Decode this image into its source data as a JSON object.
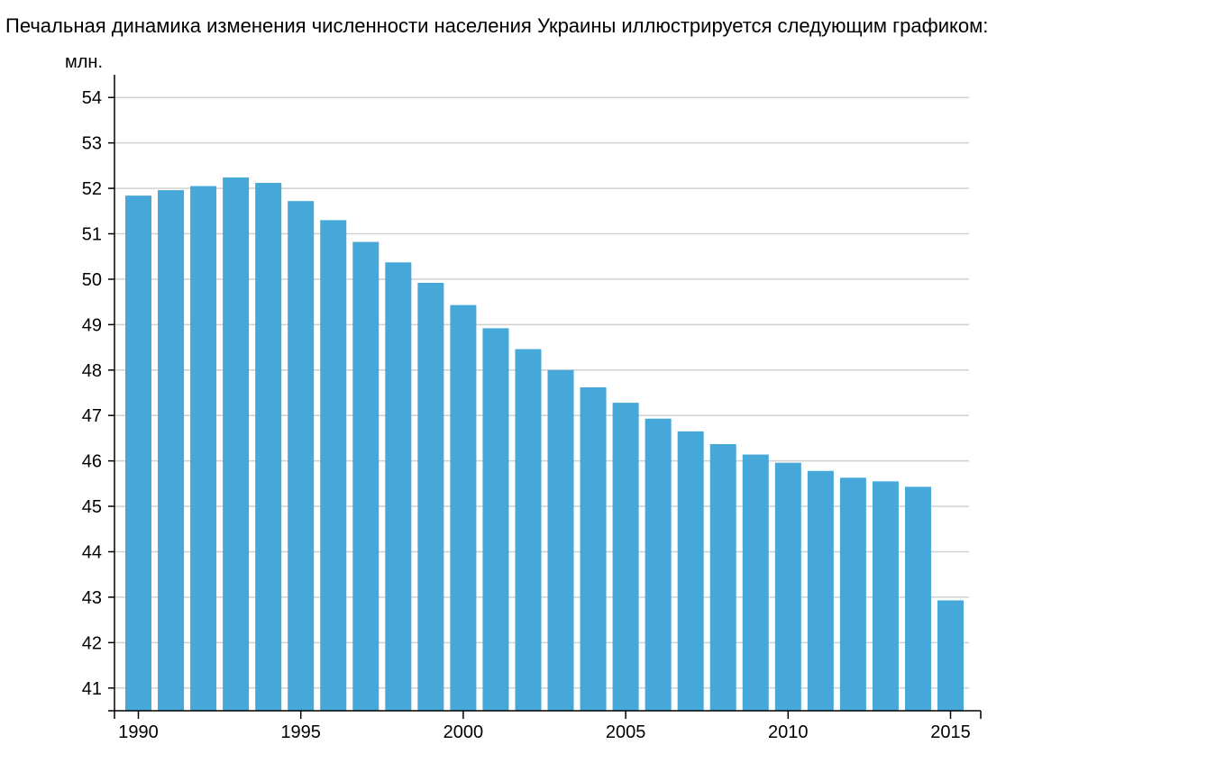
{
  "caption": "Печальная динамика изменения численности населения Украины иллюстрируется следующим графиком:",
  "colors": {
    "bar": "#45a8d9",
    "gridline": "#d0d0d0",
    "axis": "#000000"
  },
  "chart_data": {
    "type": "bar",
    "title": "",
    "xlabel": "",
    "ylabel": "млн.",
    "x_ticks": [
      1990,
      1995,
      2000,
      2005,
      2010,
      2015
    ],
    "y_ticks": [
      41,
      42,
      43,
      44,
      45,
      46,
      47,
      48,
      49,
      50,
      51,
      52,
      53,
      54
    ],
    "ylim": [
      40.5,
      54.5
    ],
    "grid": true,
    "legend": "none",
    "categories": [
      1990,
      1991,
      1992,
      1993,
      1994,
      1995,
      1996,
      1997,
      1998,
      1999,
      2000,
      2001,
      2002,
      2003,
      2004,
      2005,
      2006,
      2007,
      2008,
      2009,
      2010,
      2011,
      2012,
      2013,
      2014,
      2015
    ],
    "values": [
      51.84,
      51.96,
      52.05,
      52.24,
      52.12,
      51.72,
      51.3,
      50.82,
      50.37,
      49.92,
      49.43,
      48.92,
      48.46,
      48.0,
      47.62,
      47.28,
      46.93,
      46.65,
      46.37,
      46.14,
      45.96,
      45.78,
      45.63,
      45.55,
      45.43,
      42.93
    ]
  }
}
